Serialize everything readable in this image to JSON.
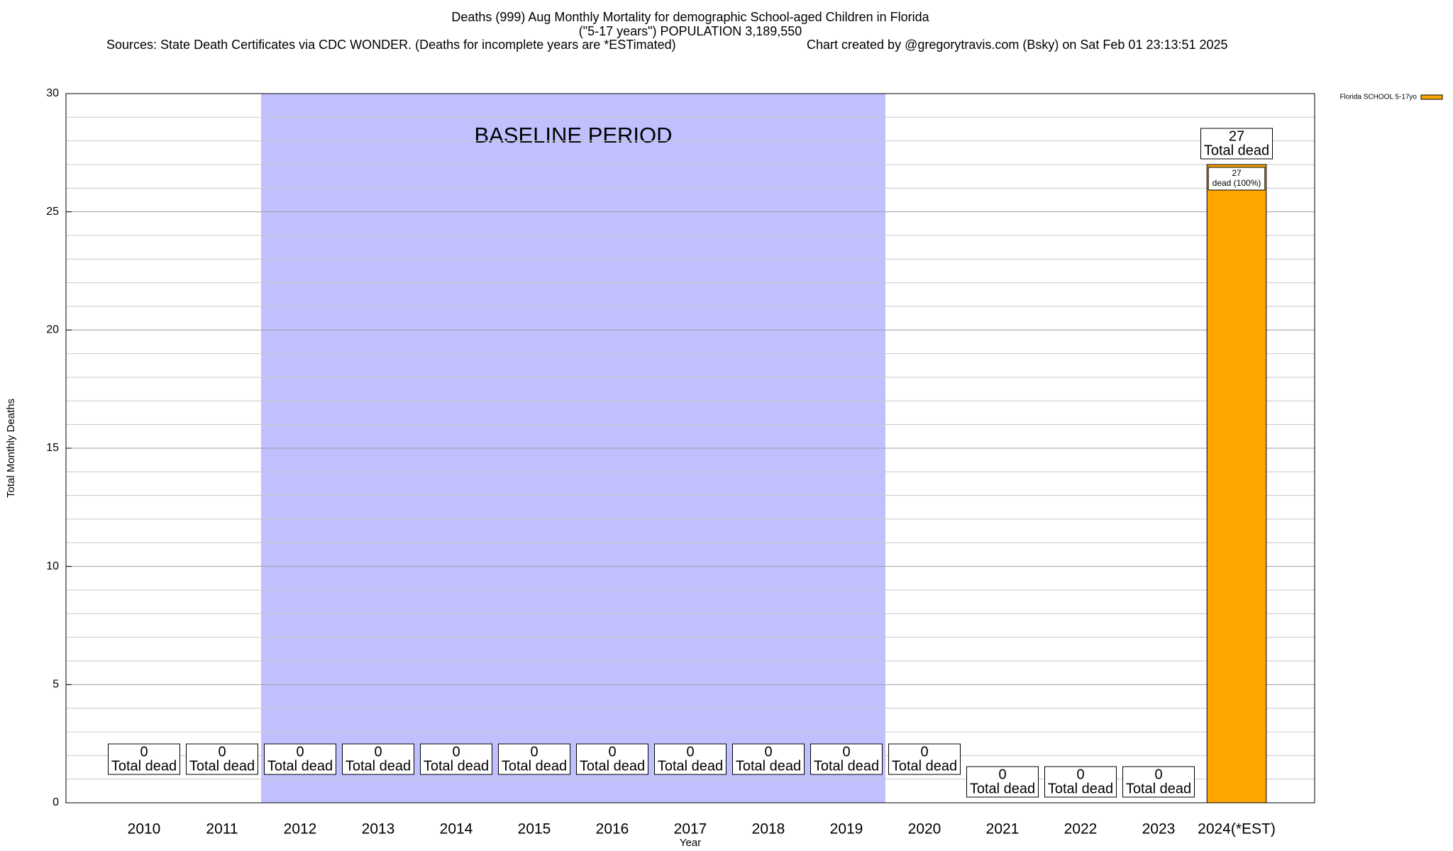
{
  "chart_data": {
    "type": "bar",
    "title": "Deaths (999) Aug Monthly Mortality for demographic School-aged Children in Florida",
    "subtitle": "(\"5-17 years\") POPULATION 3,189,550",
    "sources": "Sources: State Death Certificates via CDC WONDER. (Deaths for incomplete years are *ESTimated)",
    "credit": "Chart created by @gregorytravis.com (Bsky) on Sat Feb 01 23:13:51 2025",
    "xlabel": "Year",
    "ylabel": "Total Monthly Deaths",
    "categories": [
      "2010",
      "2011",
      "2012",
      "2013",
      "2014",
      "2015",
      "2016",
      "2017",
      "2018",
      "2019",
      "2020",
      "2021",
      "2022",
      "2023",
      "2024(*EST)"
    ],
    "series": [
      {
        "name": "Florida SCHOOL 5-17yo",
        "color": "#ffa500",
        "values": [
          0,
          0,
          0,
          0,
          0,
          0,
          0,
          0,
          0,
          0,
          0,
          0,
          0,
          0,
          27
        ],
        "inner_labels": [
          null,
          null,
          null,
          null,
          null,
          null,
          null,
          null,
          null,
          null,
          null,
          null,
          null,
          null,
          "dead (100%)"
        ]
      }
    ],
    "total_label": "Total dead",
    "shaded_span": {
      "label": "BASELINE PERIOD",
      "from": "2012",
      "to": "2019",
      "color": "#c0c0ff"
    },
    "ylim": [
      0,
      30
    ],
    "yticks": [
      0,
      5,
      10,
      15,
      20,
      25,
      30
    ],
    "minor_yticks": [
      1,
      2,
      3,
      4,
      6,
      7,
      8,
      9,
      11,
      12,
      13,
      14,
      16,
      17,
      18,
      19,
      21,
      22,
      23,
      24,
      26,
      27,
      28,
      29
    ],
    "grid": true,
    "legend": "top-right"
  }
}
